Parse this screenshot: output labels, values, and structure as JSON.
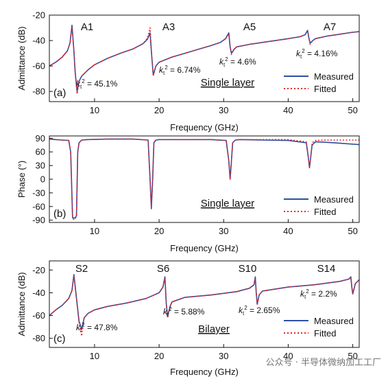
{
  "colors": {
    "measured": "#2b4fa2",
    "fitted": "#e3262b",
    "axis": "#111111"
  },
  "legend_labels": {
    "measured": "Measured",
    "fitted": "Fitted"
  },
  "watermark": "公众号 · 半导体微纳加工工厂",
  "chart_data": [
    {
      "type": "line",
      "panel": "(a)",
      "caption": "Single layer",
      "xlabel": "Frequency (GHz)",
      "ylabel": "Admittance (dB)",
      "xlim": [
        3,
        51
      ],
      "ylim": [
        -88,
        -20
      ],
      "xticks": [
        10,
        20,
        30,
        40,
        50
      ],
      "yticks": [
        -20,
        -40,
        -60,
        -80
      ],
      "legend": "bottom-right",
      "resonances": [
        {
          "label": "A1",
          "f": 6.5,
          "fa": 7.3,
          "kt2": "45.1%"
        },
        {
          "label": "A3",
          "f": 18.6,
          "fa": 19.1,
          "kt2": "6.74%"
        },
        {
          "label": "A5",
          "f": 30.8,
          "fa": 31.2,
          "kt2": "4.6%"
        },
        {
          "label": "A7",
          "f": 43.0,
          "fa": 43.4,
          "kt2": "4.16%"
        }
      ],
      "series": [
        {
          "name": "Measured",
          "style": "solid",
          "x": [
            3,
            4,
            5,
            5.8,
            6.2,
            6.5,
            6.8,
            7.0,
            7.3,
            7.6,
            8,
            9,
            10,
            12,
            14,
            16,
            17.5,
            18.2,
            18.6,
            18.85,
            19.1,
            19.5,
            20,
            22,
            24,
            26,
            28,
            29.5,
            30.3,
            30.8,
            31.0,
            31.2,
            31.6,
            32,
            34,
            36,
            38,
            40,
            41.8,
            42.6,
            43.0,
            43.2,
            43.4,
            43.8,
            44.2,
            46,
            48,
            50,
            51
          ],
          "y": [
            -60,
            -57,
            -53,
            -48,
            -42,
            -28,
            -48,
            -65,
            -80,
            -72,
            -68,
            -63,
            -59,
            -54,
            -50,
            -46.5,
            -42.5,
            -39,
            -34,
            -52,
            -67,
            -60,
            -57,
            -53,
            -50,
            -47,
            -44,
            -41.5,
            -38.5,
            -34,
            -45,
            -50,
            -47,
            -45,
            -43,
            -41.5,
            -40,
            -38.5,
            -37,
            -35.5,
            -32,
            -38,
            -42,
            -40,
            -38.5,
            -36.5,
            -35,
            -33.5,
            -33
          ]
        },
        {
          "name": "Fitted",
          "style": "dotted",
          "x": [
            3,
            4,
            5,
            5.8,
            6.2,
            6.5,
            6.8,
            7.0,
            7.3,
            7.6,
            8,
            9,
            10,
            12,
            14,
            16,
            17.5,
            18.2,
            18.6,
            18.85,
            19.1,
            19.5,
            20,
            22,
            24,
            26,
            28,
            29.5,
            30.3,
            30.8,
            31.0,
            31.2,
            31.6,
            32,
            34,
            36,
            38,
            40,
            41.8,
            42.6,
            43.0,
            43.2,
            43.4,
            43.8,
            44.2,
            46,
            48,
            50,
            51
          ],
          "y": [
            -60,
            -57,
            -53,
            -48,
            -42,
            -29,
            -48,
            -66,
            -82,
            -72,
            -68,
            -63,
            -59,
            -54,
            -50,
            -46.5,
            -42.5,
            -38,
            -30,
            -52,
            -68,
            -60,
            -57,
            -53,
            -50,
            -47,
            -44,
            -41.5,
            -38.5,
            -35,
            -45,
            -51,
            -47,
            -45,
            -43,
            -41.5,
            -40,
            -38.5,
            -37,
            -35.5,
            -33,
            -38,
            -43,
            -40,
            -38.5,
            -36.5,
            -35,
            -33.5,
            -33
          ]
        }
      ]
    },
    {
      "type": "line",
      "panel": "(b)",
      "caption": "Single layer",
      "xlabel": "Frequency (GHz)",
      "ylabel": "Phase (°)",
      "xlim": [
        3,
        51
      ],
      "ylim": [
        -95,
        95
      ],
      "xticks": [
        10,
        20,
        30,
        40,
        50
      ],
      "yticks": [
        90,
        60,
        30,
        0,
        -30,
        -60,
        -90
      ],
      "legend": "bottom-right",
      "series": [
        {
          "name": "Measured",
          "style": "solid",
          "x": [
            3,
            4,
            5,
            6.0,
            6.3,
            6.6,
            7.0,
            7.2,
            7.4,
            7.6,
            8,
            9,
            12,
            16,
            18.3,
            18.6,
            18.8,
            19.0,
            19.2,
            19.5,
            20,
            24,
            28,
            30.4,
            30.8,
            31.0,
            31.2,
            31.4,
            31.8,
            32.5,
            36,
            40,
            42.8,
            43.1,
            43.3,
            43.5,
            43.7,
            44.2,
            46,
            48,
            50,
            51
          ],
          "y": [
            88,
            87,
            86,
            85,
            60,
            -85,
            -85,
            -80,
            60,
            80,
            86,
            87,
            88,
            88,
            86,
            0,
            -65,
            0,
            80,
            86,
            87,
            87,
            87,
            85,
            40,
            0,
            40,
            80,
            86,
            87,
            86,
            85,
            80,
            50,
            25,
            50,
            75,
            82,
            81,
            79,
            77,
            76
          ]
        },
        {
          "name": "Fitted",
          "style": "dotted",
          "x": [
            3,
            4,
            5,
            6.0,
            6.3,
            6.6,
            7.0,
            7.2,
            7.4,
            7.6,
            8,
            9,
            12,
            16,
            18.3,
            18.6,
            18.8,
            19.0,
            19.2,
            19.5,
            20,
            24,
            28,
            30.4,
            30.8,
            31.0,
            31.2,
            31.4,
            31.8,
            32.5,
            36,
            40,
            42.8,
            43.1,
            43.3,
            43.5,
            43.7,
            44.2,
            46,
            48,
            50,
            51
          ],
          "y": [
            88,
            87,
            86,
            85,
            60,
            -88,
            -88,
            -80,
            60,
            80,
            86,
            87,
            88,
            88,
            86,
            0,
            -60,
            0,
            80,
            86,
            87,
            87,
            87,
            85,
            40,
            0,
            40,
            80,
            86,
            87,
            87,
            87,
            82,
            50,
            25,
            50,
            80,
            85,
            86,
            86,
            86,
            86
          ]
        }
      ]
    },
    {
      "type": "line",
      "panel": "(c)",
      "caption": "Bilayer",
      "xlabel": "Frequency (GHz)",
      "ylabel": "Admittance (dB)",
      "xlim": [
        3,
        51
      ],
      "ylim": [
        -88,
        -12
      ],
      "xticks": [
        10,
        20,
        30,
        40,
        50
      ],
      "yticks": [
        -20,
        -40,
        -60,
        -80
      ],
      "legend": "bottom-right",
      "resonances": [
        {
          "label": "S2",
          "f": 6.8,
          "fa": 8.0,
          "kt2": "47.8%"
        },
        {
          "label": "S6",
          "f": 20.9,
          "fa": 21.3,
          "kt2": "5.88%"
        },
        {
          "label": "S10",
          "f": 34.9,
          "fa": 35.2,
          "kt2": "2.65%"
        },
        {
          "label": "S14",
          "f": 49.7,
          "fa": 50.0,
          "kt2": "2.2%"
        }
      ],
      "series": [
        {
          "name": "Measured",
          "style": "solid",
          "x": [
            3,
            4,
            5,
            6,
            6.5,
            6.8,
            7.2,
            7.6,
            8.0,
            8.4,
            9,
            10,
            12,
            15,
            18,
            20,
            20.6,
            20.9,
            21.1,
            21.3,
            21.7,
            22,
            24,
            28,
            32,
            34,
            34.7,
            34.9,
            35.05,
            35.2,
            35.5,
            36,
            40,
            44,
            48,
            49.4,
            49.7,
            49.85,
            50.0,
            50.4,
            51
          ],
          "y": [
            -60,
            -55,
            -51,
            -45,
            -38,
            -24,
            -45,
            -65,
            -72,
            -62,
            -58,
            -55,
            -52,
            -49,
            -45,
            -40,
            -35,
            -26,
            -48,
            -61,
            -52,
            -48,
            -44,
            -42,
            -39,
            -36,
            -33,
            -26,
            -40,
            -50,
            -42,
            -38.5,
            -35,
            -33,
            -30,
            -28,
            -26,
            -35,
            -41,
            -32,
            -28.5
          ]
        },
        {
          "name": "Fitted",
          "style": "dotted",
          "x": [
            3,
            4,
            5,
            6,
            6.5,
            6.8,
            7.2,
            7.6,
            8.0,
            8.4,
            9,
            10,
            12,
            15,
            18,
            20,
            20.6,
            20.9,
            21.1,
            21.3,
            21.7,
            22,
            24,
            28,
            32,
            34,
            34.7,
            34.9,
            35.05,
            35.2,
            35.5,
            36,
            40,
            44,
            48,
            49.4,
            49.7,
            49.85,
            50.0,
            50.4,
            51
          ],
          "y": [
            -60,
            -55,
            -51,
            -45,
            -38,
            -25,
            -45,
            -66,
            -78,
            -62,
            -58,
            -55,
            -52,
            -49,
            -45,
            -40,
            -35,
            -27,
            -48,
            -62,
            -52,
            -48,
            -44,
            -42,
            -39,
            -36,
            -33,
            -27,
            -40,
            -51,
            -42,
            -38.5,
            -35,
            -33,
            -30,
            -28,
            -27,
            -35,
            -41,
            -32,
            -28.5
          ]
        }
      ]
    }
  ]
}
